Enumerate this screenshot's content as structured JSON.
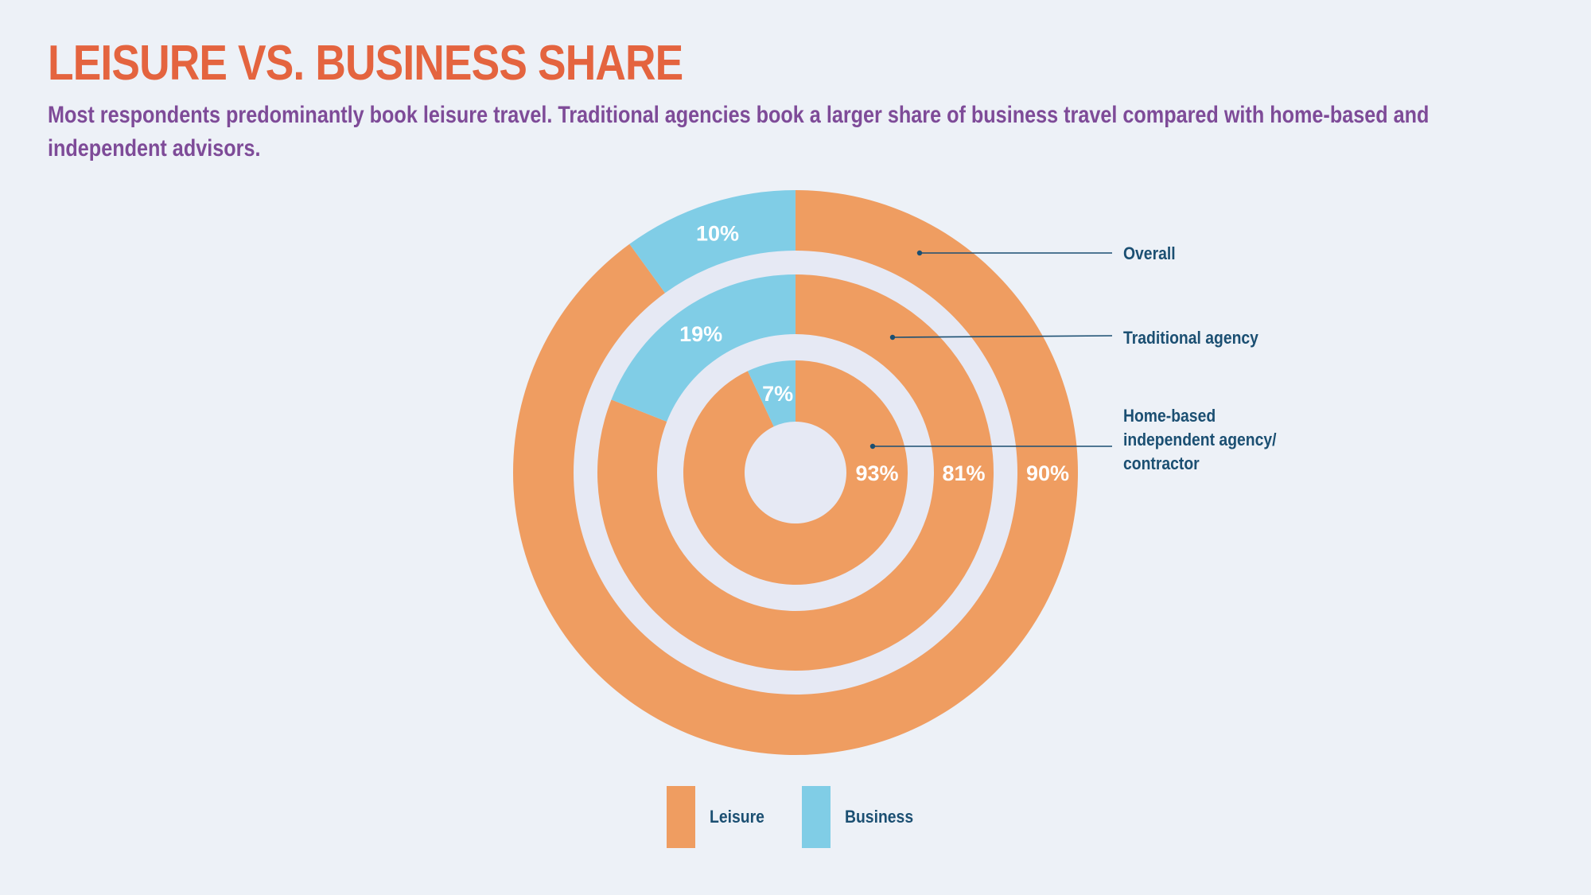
{
  "title": "LEISURE VS. BUSINESS SHARE",
  "subtitle": "Most respondents predominantly book leisure travel. Traditional agencies book a larger share of business travel compared with home-based and independent advisors.",
  "colors": {
    "leisure": "#ef9d61",
    "business": "#80cde6",
    "leader": "#1b4f72",
    "gap": "#e6e9f4"
  },
  "chart_data": {
    "type": "donut",
    "categories": [
      "Leisure",
      "Business"
    ],
    "series": [
      {
        "name": "Overall",
        "values": [
          90,
          10
        ],
        "labels": [
          "90%",
          "10%"
        ]
      },
      {
        "name": "Traditional agency",
        "values": [
          81,
          19
        ],
        "labels": [
          "81%",
          "19%"
        ]
      },
      {
        "name": "Home-based independent agency/ contractor",
        "label_lines": [
          "Home-based",
          "independent agency/",
          "contractor"
        ],
        "values": [
          93,
          7
        ],
        "labels": [
          "93%",
          "7%"
        ]
      }
    ],
    "legend": {
      "position": "bottom",
      "items": [
        "Leisure",
        "Business"
      ]
    }
  }
}
